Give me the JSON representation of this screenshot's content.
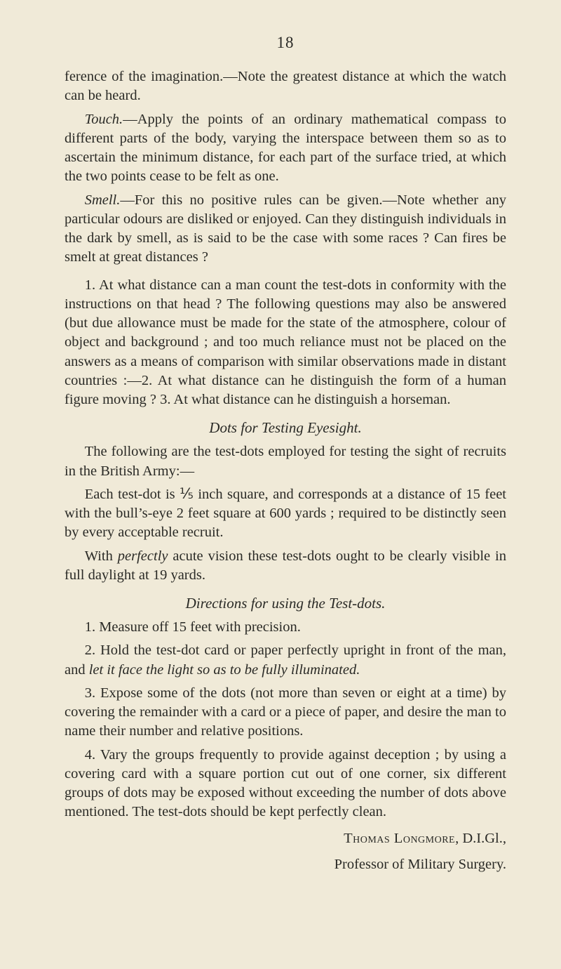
{
  "page_number": "18",
  "para1": "ference of the imagination.—Note the greatest distance at which the watch can be heard.",
  "para2_html": "<em>Touch.</em>—Apply the points of an ordinary mathematical compass to different parts of the body, varying the interspace between them so as to ascertain the minimum distance, for each part of the surface tried, at which the two points cease to be felt as one.",
  "para3_html": "<em>Smell.</em>—For this no positive rules can be given.—Note whether any particular odours are disliked or enjoyed. Can they distinguish individuals in the dark by smell, as is said to be the case with some races ? Can fires be smelt at great distances ?",
  "para4": "1. At what distance can a man count the test-dots in conformity with the instructions on that head ? The following questions may also be answered (but due allowance must be made for the state of the atmosphere, colour of object and background ; and too much reliance must not be placed on the answers as a means of comparison with similar observations made in distant countries :—2. At what distance can he distinguish the form of a human figure moving ? 3. At what distance can he distinguish a horseman.",
  "head1": "Dots for Testing Eyesight.",
  "para5": "The following are the test-dots employed for testing the sight of recruits in the British Army:—",
  "para6": "Each test-dot is ⅕ inch square, and corresponds at a distance of 15 feet with the bull’s-eye 2 feet square at 600 yards ; required to be distinctly seen by every acceptable recruit.",
  "para7_html": "With <em>perfectly</em> acute vision these test-dots ought to be clearly visible in full daylight at 19 yards.",
  "head2": "Directions for using the Test-dots.",
  "para8": "1. Measure off 15 feet with precision.",
  "para9_html": "2. Hold the test-dot card or paper perfectly upright in front of the man, and <em>let it face the light so as to be fully illuminated.</em>",
  "para10": "3. Expose some of the dots (not more than seven or eight at a time) by covering the remainder with a card or a piece of paper, and desire the man to name their number and relative positions.",
  "para11": "4. Vary the groups frequently to provide against deception ; by using a covering card with a square portion cut out of one corner, six different groups of dots may be exposed without exceeding the number of dots above mentioned. The test-dots should be kept perfectly clean.",
  "sig1_html": "<span class=\"smallcaps\">Thomas Longmore</span>, D.I.Gl.,",
  "sig2": "Professor of Military Surgery."
}
